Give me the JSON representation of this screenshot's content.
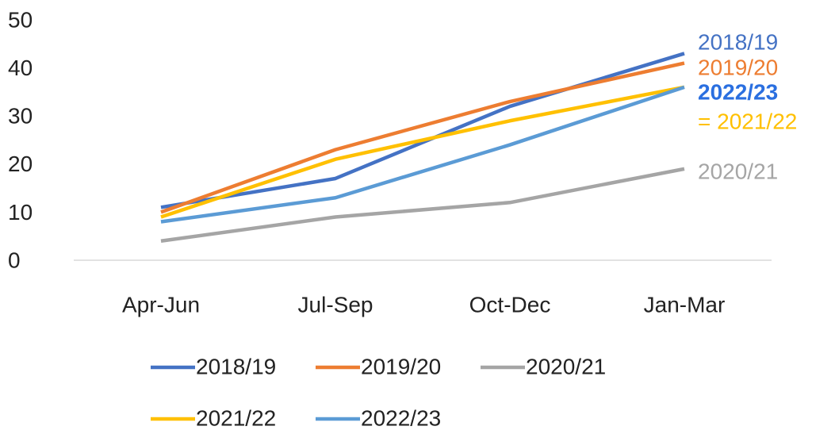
{
  "chart_data": {
    "type": "line",
    "categories": [
      "Apr-Jun",
      "Jul-Sep",
      "Oct-Dec",
      "Jan-Mar"
    ],
    "series": [
      {
        "name": "2018/19",
        "color": "#4472c4",
        "values": [
          11,
          17,
          32,
          43
        ]
      },
      {
        "name": "2019/20",
        "color": "#ed7d31",
        "values": [
          10,
          23,
          33,
          41
        ]
      },
      {
        "name": "2020/21",
        "color": "#a5a5a5",
        "values": [
          4,
          9,
          12,
          19
        ]
      },
      {
        "name": "2021/22",
        "color": "#ffc000",
        "values": [
          9,
          21,
          29,
          36
        ]
      },
      {
        "name": "2022/23",
        "color": "#5b9bd5",
        "values": [
          8,
          13,
          24,
          36
        ]
      }
    ],
    "ylim": [
      0,
      50
    ],
    "yticks": [
      0,
      10,
      20,
      30,
      40,
      50
    ],
    "grid": false,
    "legend": "bottom",
    "annotations": [
      {
        "text": "2018/19",
        "color": "#4472c4",
        "bold": false
      },
      {
        "text": "2019/20",
        "color": "#ed7d31",
        "bold": false
      },
      {
        "text": "2022/23",
        "color": "#2a6fe0",
        "bold": true
      },
      {
        "text": "= 2021/22",
        "color": "#ffc000",
        "bold": false
      },
      {
        "text": "2020/21",
        "color": "#a5a5a5",
        "bold": false
      }
    ]
  }
}
